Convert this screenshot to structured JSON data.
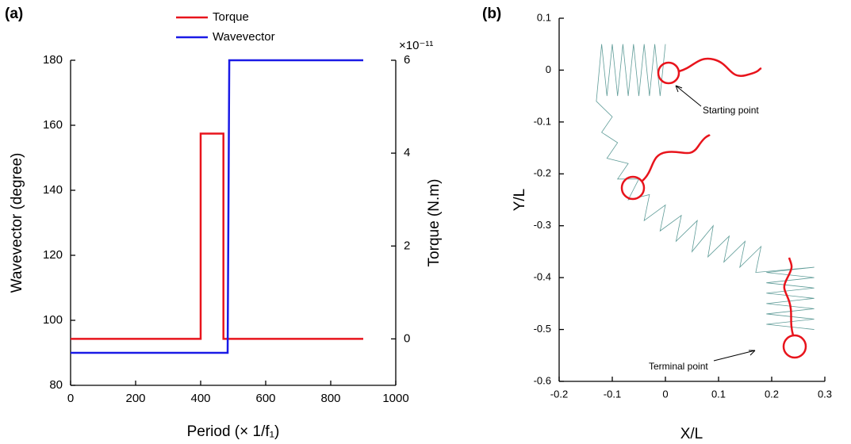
{
  "chart_data": [
    {
      "type": "line",
      "panel_label": "(a)",
      "x_label": "Period (× 1/f₁)",
      "y_label": "Wavevector (degree)",
      "y2_label": "Torque (N.m)",
      "y2_scale_label": "×10⁻¹¹",
      "xlim": [
        0,
        1000
      ],
      "xticks": [
        0,
        200,
        400,
        600,
        800,
        1000
      ],
      "ylim": [
        80,
        180
      ],
      "yticks": [
        80,
        100,
        120,
        140,
        160,
        180
      ],
      "y2lim": [
        -1,
        6
      ],
      "y2ticks": [
        0,
        2,
        4,
        6
      ],
      "legend": "top",
      "grid": false,
      "series": [
        {
          "name": "Torque",
          "color": "#e8141c",
          "axis": "y2",
          "x": [
            0,
            400,
            400,
            470,
            470,
            900
          ],
          "values": [
            0,
            0,
            4.42,
            4.42,
            0,
            0
          ]
        },
        {
          "name": "Wavevector",
          "color": "#1a1ae6",
          "x": [
            0,
            483,
            488,
            900
          ],
          "values": [
            90,
            90,
            180,
            180
          ]
        }
      ]
    },
    {
      "type": "line",
      "panel_label": "(b)",
      "x_label": "X/L",
      "y_label": "Y/L",
      "xlim": [
        -0.2,
        0.3
      ],
      "xticks": [
        -0.2,
        -0.1,
        0,
        0.1,
        0.2,
        0.3
      ],
      "ylim": [
        -0.6,
        0.1
      ],
      "yticks": [
        -0.6,
        -0.5,
        -0.4,
        -0.3,
        -0.2,
        -0.1,
        0,
        0.1
      ],
      "grid": false,
      "annotations": [
        "Starting point",
        "Terminal point"
      ],
      "series": [
        {
          "color": "#5f9c98",
          "x": [
            0,
            -0.01,
            -0.02,
            -0.03,
            -0.04,
            -0.05,
            -0.06,
            -0.07,
            -0.08,
            -0.09,
            -0.1,
            -0.11,
            -0.12,
            -0.13,
            -0.1,
            -0.12,
            -0.09,
            -0.11,
            -0.07,
            -0.09,
            -0.05,
            -0.07,
            -0.03,
            -0.04,
            0,
            -0.01,
            0.03,
            0.02,
            0.06,
            0.05,
            0.09,
            0.08,
            0.12,
            0.11,
            0.15,
            0.14,
            0.18,
            0.17,
            0.28,
            0.19,
            0.28,
            0.19,
            0.28,
            0.19,
            0.28,
            0.19,
            0.28,
            0.19,
            0.28,
            0.19,
            0.28
          ],
          "values": [
            0.05,
            -0.05,
            0.05,
            -0.05,
            0.05,
            -0.05,
            0.05,
            -0.05,
            0.05,
            -0.05,
            0.05,
            -0.05,
            0.05,
            -0.06,
            -0.09,
            -0.12,
            -0.14,
            -0.17,
            -0.18,
            -0.21,
            -0.21,
            -0.25,
            -0.24,
            -0.29,
            -0.26,
            -0.31,
            -0.28,
            -0.33,
            -0.29,
            -0.35,
            -0.3,
            -0.36,
            -0.32,
            -0.37,
            -0.33,
            -0.38,
            -0.34,
            -0.39,
            -0.38,
            -0.39,
            -0.4,
            -0.41,
            -0.42,
            -0.43,
            -0.44,
            -0.45,
            -0.46,
            -0.47,
            -0.48,
            -0.49,
            -0.5
          ]
        }
      ]
    }
  ]
}
